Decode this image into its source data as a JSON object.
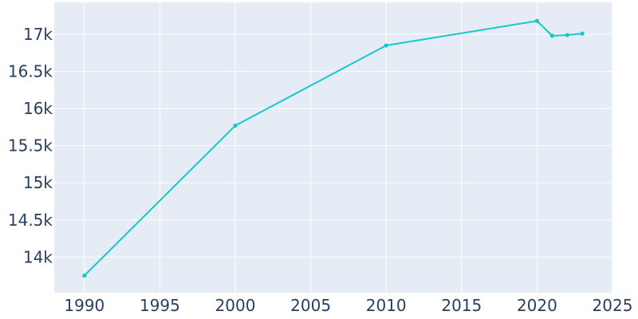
{
  "chart_data": {
    "type": "line",
    "title": "",
    "xlabel": "",
    "ylabel": "",
    "xlim": [
      1988,
      2025
    ],
    "ylim": [
      13520,
      17430
    ],
    "grid": true,
    "x_ticks": [
      1990,
      1995,
      2000,
      2005,
      2010,
      2015,
      2020,
      2025
    ],
    "x_tick_labels": [
      "1990",
      "1995",
      "2000",
      "2005",
      "2010",
      "2015",
      "2020",
      "2025"
    ],
    "y_ticks": [
      14000,
      14500,
      15000,
      15500,
      16000,
      16500,
      17000
    ],
    "y_tick_labels": [
      "14k",
      "14.5k",
      "15k",
      "15.5k",
      "16k",
      "16.5k",
      "17k"
    ],
    "colors": {
      "line": "#17c8c8",
      "plot_bg": "#e5ecf6",
      "grid": "#ffffff",
      "text": "#2a3f5f"
    },
    "series": [
      {
        "x": [
          1990,
          2000,
          2010,
          2020,
          2021,
          2022,
          2023
        ],
        "y": [
          13750,
          15770,
          16850,
          17180,
          16980,
          16990,
          17010
        ]
      }
    ]
  }
}
